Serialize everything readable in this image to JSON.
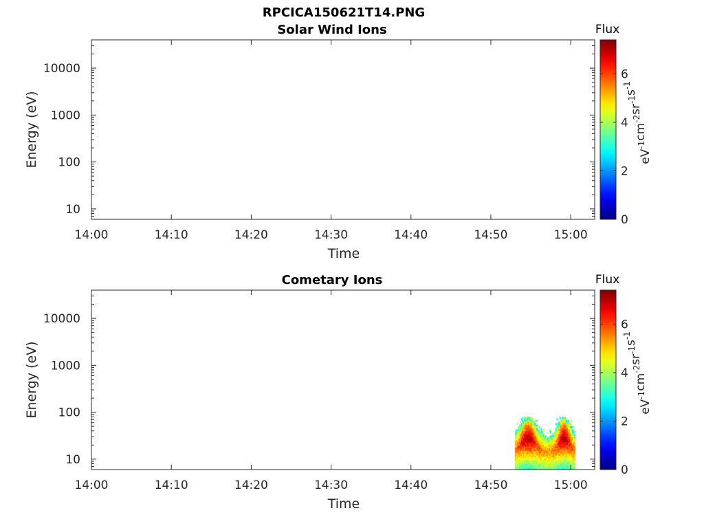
{
  "figure": {
    "filename": "RPCICA150621T14.PNG"
  },
  "chart_data": [
    {
      "type": "heatmap",
      "title": "Solar Wind Ions",
      "xlabel": "Time",
      "ylabel": "Energy (eV)",
      "y_scale": "log",
      "ylim": [
        6,
        40000
      ],
      "xlim": [
        "14:00",
        "15:03"
      ],
      "x_tick_labels": [
        "14:00",
        "14:10",
        "14:20",
        "14:30",
        "14:40",
        "14:50",
        "15:00"
      ],
      "y_tick_labels": [
        "10",
        "100",
        "1000",
        "10000"
      ],
      "colorbar": {
        "title": "Flux",
        "unit_label": "eV^-1 cm^-2 sr^-1 s^-1",
        "unit_parts": [
          [
            "eV",
            "-1"
          ],
          [
            "cm",
            "-2"
          ],
          [
            "sr",
            "-1"
          ],
          [
            "s",
            "-1"
          ]
        ],
        "range": [
          0,
          7.4
        ],
        "tick_labels": [
          "0",
          "2",
          "4",
          "6"
        ],
        "colormap": "jet"
      },
      "cells": []
    },
    {
      "type": "heatmap",
      "title": "Cometary Ions",
      "xlabel": "Time",
      "ylabel": "Energy (eV)",
      "y_scale": "log",
      "ylim": [
        6,
        40000
      ],
      "xlim": [
        "14:00",
        "15:03"
      ],
      "x_tick_labels": [
        "14:00",
        "14:10",
        "14:20",
        "14:30",
        "14:40",
        "14:50",
        "15:00"
      ],
      "y_tick_labels": [
        "10",
        "100",
        "1000",
        "10000"
      ],
      "colorbar": {
        "title": "Flux",
        "unit_label": "eV^-1 cm^-2 sr^-1 s^-1",
        "unit_parts": [
          [
            "eV",
            "-1"
          ],
          [
            "cm",
            "-2"
          ],
          [
            "sr",
            "-1"
          ],
          [
            "s",
            "-1"
          ]
        ],
        "range": [
          0,
          7.4
        ],
        "tick_labels": [
          "0",
          "2",
          "4",
          "6"
        ],
        "colormap": "jet"
      },
      "description_of_data": "Signal present only from about 14:53 to 15:00.5 at energies roughly 6-80 eV; peak flux near 7 around 14:54-14:55 and 14:59 at ~15-40 eV.",
      "time_range_with_signal": [
        "14:53",
        "15:00:30"
      ],
      "energy_range_with_signal": [
        6,
        80
      ]
    }
  ]
}
